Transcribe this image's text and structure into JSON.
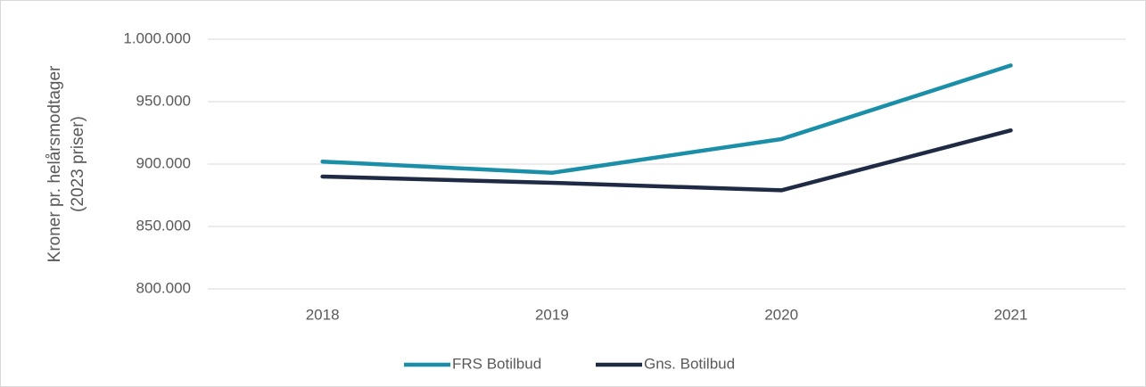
{
  "chart_data": {
    "type": "line",
    "ylabel": [
      "Kroner pr. helårsmodtager",
      "(2023 priser)"
    ],
    "categories": [
      "2018",
      "2019",
      "2020",
      "2021"
    ],
    "series": [
      {
        "name": "FRS Botilbud",
        "color": "#1b8ea8",
        "values": [
          902000,
          893000,
          920000,
          979000
        ]
      },
      {
        "name": "Gns. Botilbud",
        "color": "#1f2b44",
        "values": [
          890000,
          885000,
          879000,
          927000
        ]
      }
    ],
    "ylim": [
      800000,
      1000000
    ],
    "yticks": [
      {
        "value": 800000,
        "label": "800.000"
      },
      {
        "value": 850000,
        "label": "850.000"
      },
      {
        "value": 900000,
        "label": "900.000"
      },
      {
        "value": 950000,
        "label": "950.000"
      },
      {
        "value": 1000000,
        "label": "1.000.000"
      }
    ],
    "grid": true,
    "legend": "bottom"
  }
}
